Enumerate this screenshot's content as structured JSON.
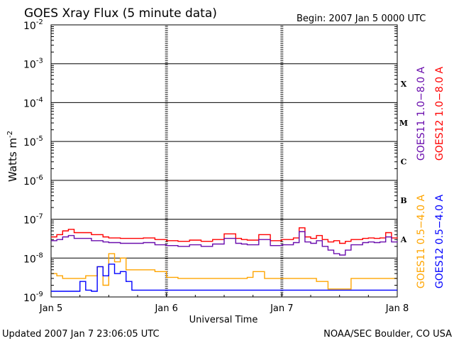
{
  "chart_data": {
    "type": "line",
    "title": "GOES Xray Flux (5 minute data)",
    "begin_label": "Begin:  2007 Jan 5 0000 UTC",
    "xlabel": "Universal Time",
    "ylabel_main": "Watts m",
    "ylabel_exp": "-2",
    "x_ticks": [
      "Jan 5",
      "Jan 6",
      "Jan 7",
      "Jan 8"
    ],
    "xlim_days": [
      0,
      3
    ],
    "y_scale": "log",
    "ylim_exp": [
      -9,
      -2
    ],
    "y_tick_exps": [
      "-9",
      "-8",
      "-7",
      "-6",
      "-5",
      "-4",
      "-3",
      "-2"
    ],
    "flare_classes": [
      {
        "label": "X",
        "exp": -4
      },
      {
        "label": "M",
        "exp": -5
      },
      {
        "label": "C",
        "exp": -6
      },
      {
        "label": "B",
        "exp": -7
      },
      {
        "label": "A",
        "exp": -8
      }
    ],
    "footer_left": "Updated 2007 Jan  7 23:06:05 UTC",
    "footer_right": "NOAA/SEC Boulder, CO USA",
    "legend_top": [
      {
        "text": "GOES11 1.0−8.0 A",
        "color": "#6a0dad"
      },
      {
        "text": "GOES12 1.0−8.0 A",
        "color": "#ff0000"
      }
    ],
    "legend_bottom": [
      {
        "text": "GOES11 0.5−4.0 A",
        "color": "#ffa500"
      },
      {
        "text": "GOES12 0.5−4.0 A",
        "color": "#0000ff"
      }
    ],
    "series": [
      {
        "name": "GOES12 1.0−8.0 A",
        "color": "#ff0000",
        "x": [
          0,
          0.05,
          0.1,
          0.15,
          0.2,
          0.3,
          0.35,
          0.45,
          0.5,
          0.6,
          0.7,
          0.8,
          0.9,
          1.0,
          1.1,
          1.2,
          1.3,
          1.4,
          1.5,
          1.6,
          1.65,
          1.7,
          1.8,
          1.9,
          2.0,
          2.05,
          2.1,
          2.15,
          2.2,
          2.25,
          2.3,
          2.35,
          2.4,
          2.45,
          2.5,
          2.55,
          2.6,
          2.7,
          2.75,
          2.8,
          2.85,
          2.9,
          2.95,
          3.0
        ],
        "y": [
          3.5e-08,
          4e-08,
          5e-08,
          5.5e-08,
          4.5e-08,
          4.5e-08,
          4e-08,
          3.5e-08,
          3.3e-08,
          3.2e-08,
          3.2e-08,
          3.3e-08,
          3e-08,
          2.8e-08,
          2.7e-08,
          2.9e-08,
          2.7e-08,
          3e-08,
          4.2e-08,
          3.2e-08,
          3e-08,
          2.9e-08,
          4e-08,
          2.8e-08,
          3e-08,
          3e-08,
          3.3e-08,
          6e-08,
          3.5e-08,
          3.2e-08,
          3.8e-08,
          3e-08,
          2.6e-08,
          2.8e-08,
          2.4e-08,
          2.7e-08,
          3e-08,
          3.2e-08,
          3.3e-08,
          3.2e-08,
          3.3e-08,
          4.5e-08,
          3.3e-08,
          3.4e-08
        ]
      },
      {
        "name": "GOES11 1.0−8.0 A",
        "color": "#6a0dad",
        "x": [
          0,
          0.05,
          0.1,
          0.15,
          0.2,
          0.3,
          0.35,
          0.45,
          0.5,
          0.6,
          0.7,
          0.8,
          0.9,
          1.0,
          1.1,
          1.2,
          1.3,
          1.4,
          1.5,
          1.6,
          1.65,
          1.7,
          1.8,
          1.9,
          2.0,
          2.05,
          2.1,
          2.15,
          2.2,
          2.25,
          2.3,
          2.35,
          2.4,
          2.45,
          2.5,
          2.55,
          2.6,
          2.7,
          2.75,
          2.8,
          2.85,
          2.9,
          2.95,
          3.0
        ],
        "y": [
          2.8e-08,
          3e-08,
          3.5e-08,
          3.8e-08,
          3.2e-08,
          3.2e-08,
          2.8e-08,
          2.6e-08,
          2.5e-08,
          2.4e-08,
          2.4e-08,
          2.5e-08,
          2.2e-08,
          2.1e-08,
          2e-08,
          2.2e-08,
          2e-08,
          2.3e-08,
          3.2e-08,
          2.4e-08,
          2.3e-08,
          2.2e-08,
          3e-08,
          2.1e-08,
          2.2e-08,
          2.2e-08,
          2.5e-08,
          4.8e-08,
          2.6e-08,
          2.4e-08,
          2.8e-08,
          2e-08,
          1.6e-08,
          1.3e-08,
          1.2e-08,
          1.6e-08,
          2.2e-08,
          2.5e-08,
          2.6e-08,
          2.5e-08,
          2.6e-08,
          3.5e-08,
          2.6e-08,
          2.7e-08
        ]
      },
      {
        "name": "GOES11 0.5−4.0 A",
        "color": "#ffa500",
        "x": [
          0,
          0.05,
          0.1,
          0.2,
          0.3,
          0.4,
          0.45,
          0.5,
          0.55,
          0.6,
          0.65,
          0.7,
          0.8,
          0.9,
          1.0,
          1.1,
          1.2,
          1.4,
          1.6,
          1.7,
          1.75,
          1.8,
          1.85,
          1.9,
          2.0,
          2.1,
          2.2,
          2.3,
          2.4,
          2.5,
          2.6,
          2.7,
          2.8,
          2.9,
          3.0
        ],
        "y": [
          4e-09,
          3.5e-09,
          3e-09,
          3e-09,
          3.5e-09,
          6e-09,
          2e-09,
          1.3e-08,
          8e-09,
          1e-08,
          5e-09,
          5e-09,
          5e-09,
          4.5e-09,
          3.2e-09,
          3e-09,
          3e-09,
          3e-09,
          3e-09,
          3.2e-09,
          4.5e-09,
          4.5e-09,
          3e-09,
          3e-09,
          3e-09,
          3e-09,
          3e-09,
          2.5e-09,
          1.6e-09,
          1.6e-09,
          3e-09,
          3e-09,
          3e-09,
          3e-09,
          3e-09
        ]
      },
      {
        "name": "GOES12 0.5−4.0 A",
        "color": "#0000ff",
        "x": [
          0,
          0.1,
          0.2,
          0.25,
          0.3,
          0.35,
          0.4,
          0.45,
          0.5,
          0.55,
          0.6,
          0.65,
          0.7,
          0.8,
          1.0,
          1.2,
          1.5,
          1.8,
          2.0,
          2.2,
          2.4,
          2.6,
          2.8,
          3.0
        ],
        "y": [
          1.4e-09,
          1.4e-09,
          1.4e-09,
          2.5e-09,
          1.5e-09,
          1.4e-09,
          6e-09,
          3.5e-09,
          7e-09,
          4e-09,
          4.5e-09,
          2.5e-09,
          1.5e-09,
          1.5e-09,
          1.5e-09,
          1.5e-09,
          1.5e-09,
          1.5e-09,
          1.5e-09,
          1.5e-09,
          1.5e-09,
          1.5e-09,
          1.5e-09,
          1.5e-09
        ]
      }
    ]
  }
}
